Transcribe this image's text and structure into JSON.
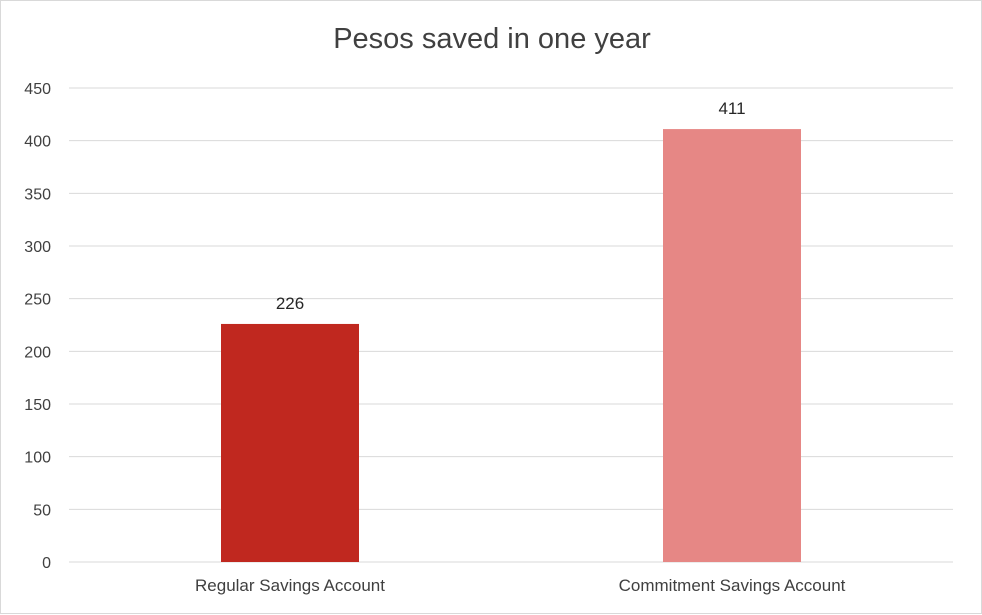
{
  "chart_data": {
    "type": "bar",
    "title": "Pesos saved in one year",
    "xlabel": "",
    "ylabel": "",
    "categories": [
      "Regular Savings Account",
      "Commitment Savings Account"
    ],
    "values": [
      226,
      411
    ],
    "data_labels": [
      "226",
      "411"
    ],
    "ylim": [
      0,
      450
    ],
    "yticks": [
      0,
      50,
      100,
      150,
      200,
      250,
      300,
      350,
      400,
      450
    ],
    "grid": true,
    "legend": "none",
    "colors": [
      "#c0281f",
      "#e68785"
    ],
    "gridline_color": "#d9d9d9"
  }
}
